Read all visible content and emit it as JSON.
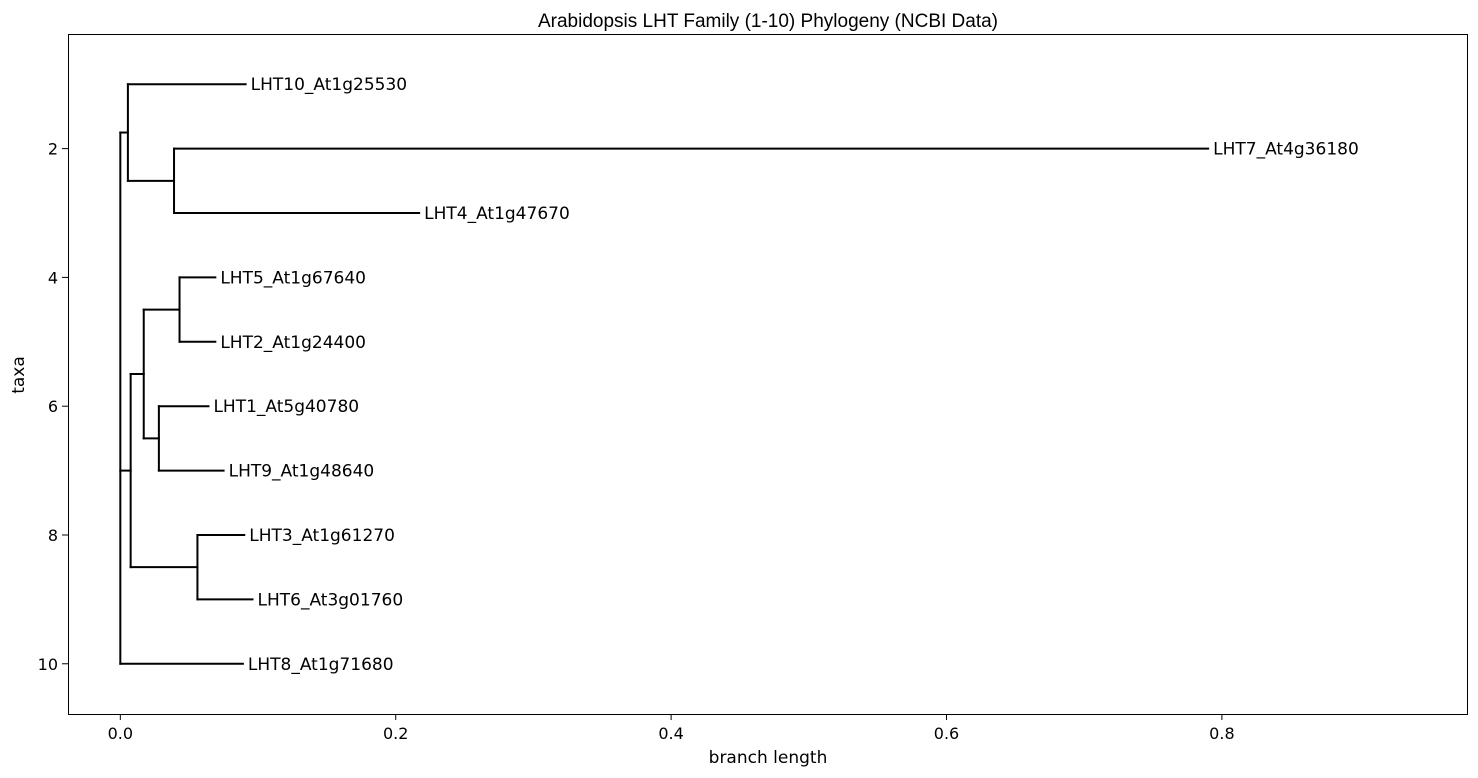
{
  "chart_data": {
    "type": "dendrogram",
    "title": "Arabidopsis LHT Family (1-10) Phylogeny (NCBI Data)",
    "xlabel": "branch length",
    "ylabel": "taxa",
    "xlim": [
      -0.038,
      0.978
    ],
    "ylim": [
      0.22,
      10.78
    ],
    "x_ticks": [
      {
        "value": 0.0,
        "label": "0.0"
      },
      {
        "value": 0.2,
        "label": "0.2"
      },
      {
        "value": 0.4,
        "label": "0.4"
      },
      {
        "value": 0.6,
        "label": "0.6"
      },
      {
        "value": 0.8,
        "label": "0.8"
      }
    ],
    "y_ticks": [
      {
        "value": 2,
        "label": "2"
      },
      {
        "value": 4,
        "label": "4"
      },
      {
        "value": 6,
        "label": "6"
      },
      {
        "value": 8,
        "label": "8"
      },
      {
        "value": 10,
        "label": "10"
      }
    ],
    "grid": false,
    "leaves": [
      {
        "label": "LHT10_At1g25530",
        "x": 0.091,
        "y": 1
      },
      {
        "label": "LHT7_At4g36180",
        "x": 0.79,
        "y": 2
      },
      {
        "label": "LHT4_At1g47670",
        "x": 0.217,
        "y": 3
      },
      {
        "label": "LHT5_At1g67640",
        "x": 0.069,
        "y": 4
      },
      {
        "label": "LHT2_At1g24400",
        "x": 0.069,
        "y": 5
      },
      {
        "label": "LHT1_At5g40780",
        "x": 0.064,
        "y": 6
      },
      {
        "label": "LHT9_At1g48640",
        "x": 0.075,
        "y": 7
      },
      {
        "label": "LHT3_At1g61270",
        "x": 0.09,
        "y": 8
      },
      {
        "label": "LHT6_At3g01760",
        "x": 0.096,
        "y": 9
      },
      {
        "label": "LHT8_At1g71680",
        "x": 0.089,
        "y": 10
      }
    ],
    "nodes": [
      {
        "id": "root",
        "x": 0.0,
        "children": [
          "A",
          "B",
          "leaf:9"
        ]
      },
      {
        "id": "A",
        "x": 0.0055,
        "children": [
          "leaf:0",
          "C"
        ]
      },
      {
        "id": "C",
        "x": 0.039,
        "children": [
          "leaf:1",
          "leaf:2"
        ]
      },
      {
        "id": "B",
        "x": 0.0075,
        "children": [
          "D",
          "G"
        ]
      },
      {
        "id": "D",
        "x": 0.017,
        "children": [
          "E",
          "F"
        ]
      },
      {
        "id": "E",
        "x": 0.043,
        "children": [
          "leaf:3",
          "leaf:4"
        ]
      },
      {
        "id": "F",
        "x": 0.028,
        "children": [
          "leaf:5",
          "leaf:6"
        ]
      },
      {
        "id": "G",
        "x": 0.056,
        "children": [
          "leaf:7",
          "leaf:8"
        ]
      }
    ]
  }
}
